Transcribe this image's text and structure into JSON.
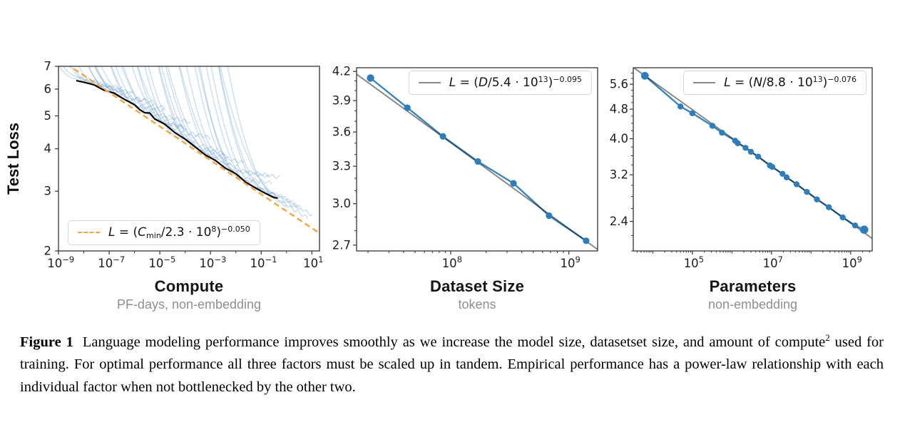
{
  "caption": {
    "label": "Figure 1",
    "body_before_sup": "Language modeling performance improves smoothly as we increase the model size, datasetset size, and amount of compute",
    "sup": "2",
    "body_after_sup": " used for training. For optimal performance all three factors must be scaled up in tandem. Empirical performance has a power-law relationship with each individual factor when not bottlenecked by the other two."
  },
  "chart_data": [
    {
      "id": "compute-loss",
      "type": "line",
      "title": "Compute",
      "subtitle": "PF-days, non-embedding",
      "ylabel": "Test Loss",
      "xscale": "log",
      "yscale": "log",
      "xlim": [
        1e-09,
        20
      ],
      "ylim": [
        2,
        7
      ],
      "grid": false,
      "xticks": [
        {
          "v": 1e-09,
          "exp": "−9"
        },
        {
          "v": 1e-07,
          "exp": "−7"
        },
        {
          "v": 1e-05,
          "exp": "−5"
        },
        {
          "v": 0.001,
          "exp": "−3"
        },
        {
          "v": 0.1,
          "exp": "−1"
        },
        {
          "v": 10,
          "exp": "1"
        }
      ],
      "yticks": [
        {
          "v": 2,
          "label": "2"
        },
        {
          "v": 3,
          "label": "3"
        },
        {
          "v": 4,
          "label": "4"
        },
        {
          "v": 5,
          "label": "5"
        },
        {
          "v": 6,
          "label": "6"
        },
        {
          "v": 7,
          "label": "7"
        }
      ],
      "legend": {
        "position": "bottom-left",
        "sample_style": "dashed",
        "sample_color": "#FBA43D",
        "parts": [
          {
            "t": "L",
            "i": 1
          },
          {
            "t": " = ("
          },
          {
            "t": "C",
            "i": 1
          },
          {
            "t": "min",
            "sub": 1
          },
          {
            "t": "/2.3 · 10"
          },
          {
            "t": "8",
            "sup": 1
          },
          {
            "t": ")"
          },
          {
            "t": "−0.050",
            "sup": 1
          }
        ]
      },
      "fit": {
        "scale": 230000000.0,
        "exponent": -0.05,
        "color": "#FBA43D",
        "dashed": true
      },
      "envelope": {
        "color": "#000000",
        "logx": [
          -8.3,
          -8.0,
          -7.6,
          -7.2,
          -6.8,
          -6.4,
          -6.0,
          -5.8,
          -5.6,
          -5.4,
          -5.2,
          -4.8,
          -4.4,
          -4.0,
          -3.6,
          -3.2,
          -2.8,
          -2.4,
          -2.0,
          -1.6,
          -1.2,
          -0.8,
          -0.5,
          -0.35
        ],
        "y": [
          6.35,
          6.3,
          6.15,
          5.98,
          5.8,
          5.62,
          5.38,
          5.22,
          5.12,
          5.08,
          4.92,
          4.7,
          4.48,
          4.26,
          4.05,
          3.84,
          3.68,
          3.52,
          3.36,
          3.2,
          3.05,
          2.95,
          2.88,
          2.85
        ]
      },
      "curves": {
        "count": 38,
        "color": "#4C8CC2",
        "opacity": 0.26,
        "seed": 11,
        "description": "light-blue individual training curves whose lower envelope is the black line"
      }
    },
    {
      "id": "dataset-loss",
      "type": "line",
      "title": "Dataset Size",
      "subtitle": "tokens",
      "ylabel": "",
      "xscale": "log",
      "yscale": "log",
      "xlim": [
        16000000.0,
        1750000000.0
      ],
      "ylim": [
        2.66,
        4.24
      ],
      "grid": false,
      "xticks": [
        {
          "v": 100000000.0,
          "exp": "8"
        },
        {
          "v": 1000000000.0,
          "exp": "9"
        }
      ],
      "yticks": [
        {
          "v": 2.7,
          "label": "2.7"
        },
        {
          "v": 3.0,
          "label": "3.0"
        },
        {
          "v": 3.3,
          "label": "3.3"
        },
        {
          "v": 3.6,
          "label": "3.6"
        },
        {
          "v": 3.9,
          "label": "3.9"
        },
        {
          "v": 4.2,
          "label": "4.2"
        }
      ],
      "legend": {
        "position": "top-right",
        "sample_style": "solid",
        "sample_color": "#8A8A8A",
        "parts": [
          {
            "t": "L",
            "i": 1
          },
          {
            "t": " = ("
          },
          {
            "t": "D",
            "i": 1
          },
          {
            "t": "/5.4 · 10"
          },
          {
            "t": "13",
            "sup": 1
          },
          {
            "t": ")"
          },
          {
            "t": "−0.095",
            "sup": 1
          }
        ]
      },
      "fit": {
        "scale": 54000000000000.0,
        "exponent": -0.095,
        "color": "#8A8A8A",
        "dashed": false
      },
      "line_color": "#2E7EBC",
      "points": [
        [
          21000000.0,
          4.13
        ],
        [
          43000000.0,
          3.83
        ],
        [
          86000000.0,
          3.56
        ],
        [
          170000000.0,
          3.34
        ],
        [
          340000000.0,
          3.16
        ],
        [
          680000000.0,
          2.91
        ],
        [
          1400000000.0,
          2.73
        ]
      ]
    },
    {
      "id": "params-loss",
      "type": "line",
      "title": "Parameters",
      "subtitle": "non-embedding",
      "ylabel": "",
      "xscale": "log",
      "yscale": "log",
      "xlim": [
        3200.0,
        3500000000.0
      ],
      "ylim": [
        2.0,
        6.2
      ],
      "grid": false,
      "xticks": [
        {
          "v": 100000.0,
          "exp": "5"
        },
        {
          "v": 10000000.0,
          "exp": "7"
        },
        {
          "v": 1000000000.0,
          "exp": "9"
        }
      ],
      "yticks": [
        {
          "v": 2.4,
          "label": "2.4"
        },
        {
          "v": 3.2,
          "label": "3.2"
        },
        {
          "v": 4.0,
          "label": "4.0"
        },
        {
          "v": 4.8,
          "label": "4.8"
        },
        {
          "v": 5.6,
          "label": "5.6"
        }
      ],
      "legend": {
        "position": "top-right",
        "sample_style": "solid",
        "sample_color": "#8A8A8A",
        "parts": [
          {
            "t": "L",
            "i": 1
          },
          {
            "t": " = ("
          },
          {
            "t": "N",
            "i": 1
          },
          {
            "t": "/8.8 · 10"
          },
          {
            "t": "13",
            "sup": 1
          },
          {
            "t": ")"
          },
          {
            "t": "−0.076",
            "sup": 1
          }
        ]
      },
      "fit": {
        "scale": 88000000000000.0,
        "exponent": -0.076,
        "color": "#8A8A8A",
        "dashed": false
      },
      "line_color": "#2E7EBC",
      "points": [
        [
          6300.0,
          5.9
        ],
        [
          50000.0,
          4.88
        ],
        [
          100000.0,
          4.68
        ],
        [
          320000.0,
          4.33
        ],
        [
          560000.0,
          4.15
        ],
        [
          1200000.0,
          3.95
        ],
        [
          1400000.0,
          3.89
        ],
        [
          2200000.0,
          3.78
        ],
        [
          3000000.0,
          3.69
        ],
        [
          4600000.0,
          3.58
        ],
        [
          9100000.0,
          3.39
        ],
        [
          10500000.0,
          3.36
        ],
        [
          19000000.0,
          3.22
        ],
        [
          24000000.0,
          3.15
        ],
        [
          43000000.0,
          3.02
        ],
        [
          78000000.0,
          2.88
        ],
        [
          140000000.0,
          2.75
        ],
        [
          280000000.0,
          2.62
        ],
        [
          630000000.0,
          2.46
        ],
        [
          1300000000.0,
          2.34
        ],
        [
          2200000000.0,
          2.28
        ]
      ]
    }
  ]
}
